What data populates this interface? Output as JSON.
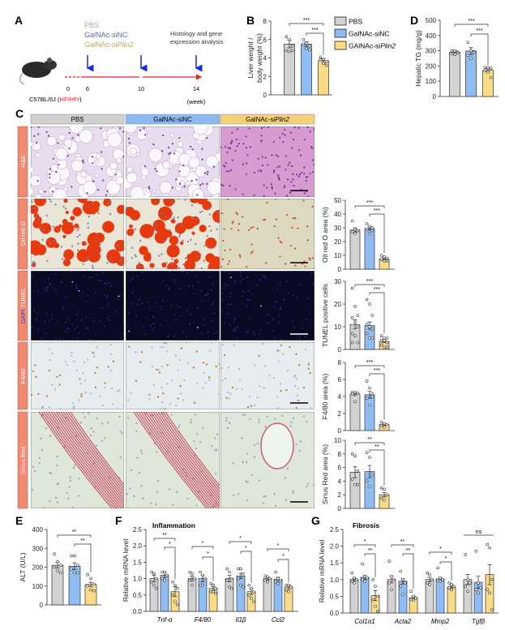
{
  "colors": {
    "pbs": "#d3d3d3",
    "sinc": "#8fbcf3",
    "siplin2": "#fbdc84",
    "red": "#ee2222",
    "arrow": "#1a2be8",
    "strip": "#f08a70"
  },
  "panels": {
    "A": "A",
    "B": "B",
    "C": "C",
    "D": "D",
    "E": "E",
    "F": "F",
    "G": "G"
  },
  "panel_a": {
    "groups": [
      "PBS",
      "GalNAc-siNC",
      "GalNAc-si",
      "Plin2"
    ],
    "endpoint_line1": "Histology and gene",
    "endpoint_line2": "expression analysis",
    "weeks": [
      "0",
      "6",
      "10",
      "14"
    ],
    "week_unit": "(week)",
    "strain": "C57BL/6J (",
    "diet": "HF/HFr",
    "strain_close": ")"
  },
  "legend": [
    "PBS",
    "GalNAc-siNC",
    "GAlNAc-si",
    "Plin2"
  ],
  "histology": {
    "columns": [
      "PBS",
      "GalNAc-siNC",
      "GalNAc-si",
      "Plin2"
    ],
    "rows": [
      "H&E",
      "Oil red O",
      "DAPI",
      "TUNEL",
      "F4/80",
      "Sirius Red"
    ]
  },
  "chart_data": [
    {
      "id": "B",
      "type": "bar",
      "ylabel": [
        "Liver weight /",
        "body weight (%)"
      ],
      "ylim": [
        0,
        8
      ],
      "yticks": [
        0,
        2,
        4,
        6,
        8
      ],
      "groups": [
        {
          "label": "",
          "values": [
            5.5,
            5.5,
            3.7
          ],
          "errors": [
            0.4,
            0.25,
            0.2
          ],
          "points": [
            [
              6.3,
              6.0,
              5.3,
              4.8,
              4.7,
              4.8
            ],
            [
              6.0,
              5.6,
              5.3,
              5.5,
              5.0,
              4.9
            ],
            [
              4.1,
              3.9,
              3.6,
              3.8,
              3.4,
              3.2
            ]
          ]
        }
      ],
      "sig": [
        {
          "a": 0,
          "b": 2,
          "label": "***"
        },
        {
          "a": 1,
          "b": 2,
          "label": "***"
        }
      ]
    },
    {
      "id": "D",
      "type": "bar",
      "ylabel": [
        "Hepatic TG (mg/g)"
      ],
      "ylim": [
        0,
        500
      ],
      "yticks": [
        0,
        100,
        200,
        300,
        400,
        500
      ],
      "groups": [
        {
          "label": "",
          "values": [
            290,
            298,
            172
          ],
          "errors": [
            12,
            22,
            10
          ],
          "points": [
            [
              300,
              300,
              290,
              280,
              275,
              285
            ],
            [
              355,
              300,
              295,
              270,
              250,
              290
            ],
            [
              190,
              190,
              185,
              170,
              160,
              125
            ]
          ]
        }
      ],
      "sig": [
        {
          "a": 0,
          "b": 2,
          "label": "***"
        },
        {
          "a": 1,
          "b": 2,
          "label": "***"
        }
      ]
    },
    {
      "id": "OilRedO",
      "type": "bar",
      "ylabel": [
        "Oil red O area (%)"
      ],
      "ylim": [
        0,
        50
      ],
      "yticks": [
        0,
        10,
        20,
        30,
        40,
        50
      ],
      "groups": [
        {
          "label": "",
          "values": [
            28.5,
            29.5,
            7.5
          ],
          "errors": [
            1.5,
            1.2,
            0.8
          ],
          "points": [
            [
              35,
              29,
              28,
              27,
              26,
              28
            ],
            [
              33,
              31,
              30,
              29,
              26,
              28
            ],
            [
              10,
              9,
              8,
              7,
              6,
              6
            ]
          ]
        }
      ],
      "sig": [
        {
          "a": 0,
          "b": 2,
          "label": "***"
        },
        {
          "a": 1,
          "b": 2,
          "label": "***"
        }
      ]
    },
    {
      "id": "TUNEL",
      "type": "bar",
      "ylabel": [
        "TUNEL positive cells"
      ],
      "ylim": [
        0,
        30
      ],
      "yticks": [
        0,
        10,
        20,
        30
      ],
      "groups": [
        {
          "label": "",
          "values": [
            11,
            10.5,
            3.5
          ],
          "errors": [
            2,
            1.6,
            0.5
          ],
          "points": [
            [
              27,
              19,
              15,
              14,
              12,
              10,
              7,
              6,
              3,
              3
            ],
            [
              22,
              20,
              15,
              11,
              10,
              9,
              7,
              5,
              5
            ],
            [
              6,
              5,
              5,
              4,
              4,
              3,
              2,
              1,
              1,
              2
            ]
          ]
        }
      ],
      "sig": [
        {
          "a": 0,
          "b": 2,
          "label": "***"
        },
        {
          "a": 1,
          "b": 2,
          "label": "***"
        }
      ]
    },
    {
      "id": "F480",
      "type": "bar",
      "ylabel": [
        "F4/80 area (%)"
      ],
      "ylim": [
        0,
        8
      ],
      "yticks": [
        0,
        2,
        4,
        6,
        8
      ],
      "groups": [
        {
          "label": "",
          "values": [
            4.3,
            4.2,
            0.7
          ],
          "errors": [
            0.2,
            0.4,
            0.1
          ],
          "points": [
            [
              4.5,
              4.5,
              4.4,
              4.3,
              3.4
            ],
            [
              5.8,
              5.0,
              4.3,
              3.8,
              3.0,
              4.0
            ],
            [
              1.0,
              0.8,
              0.7,
              0.6,
              0.4
            ]
          ]
        }
      ],
      "sig": [
        {
          "a": 0,
          "b": 2,
          "label": "***"
        },
        {
          "a": 1,
          "b": 2,
          "label": "***"
        }
      ]
    },
    {
      "id": "SiriusRed",
      "type": "bar",
      "ylabel": [
        "Sirius Red area (%)"
      ],
      "ylim": [
        0,
        10
      ],
      "yticks": [
        0,
        2,
        4,
        6,
        8,
        10
      ],
      "groups": [
        {
          "label": "",
          "values": [
            5.3,
            5.4,
            2.0
          ],
          "errors": [
            0.8,
            0.9,
            0.3
          ],
          "points": [
            [
              8.0,
              7.7,
              5.5,
              4.3,
              3.5,
              3.5
            ],
            [
              8.2,
              7.5,
              5.0,
              4.0,
              3.2
            ],
            [
              3.0,
              2.8,
              2.0,
              1.5,
              1.2
            ]
          ]
        }
      ],
      "sig": [
        {
          "a": 0,
          "b": 2,
          "label": "**"
        },
        {
          "a": 1,
          "b": 2,
          "label": "**"
        }
      ]
    },
    {
      "id": "E",
      "type": "bar",
      "ylabel": [
        "ALT (U/L)"
      ],
      "ylim": [
        0,
        400
      ],
      "yticks": [
        0,
        100,
        200,
        300,
        400
      ],
      "groups": [
        {
          "label": "",
          "values": [
            210,
            205,
            108
          ],
          "errors": [
            15,
            18,
            12
          ],
          "points": [
            [
              270,
              230,
              210,
              200,
              180,
              170
            ],
            [
              260,
              260,
              210,
              190,
              170,
              170
            ],
            [
              160,
              140,
              110,
              100,
              80,
              75
            ]
          ]
        }
      ],
      "sig": [
        {
          "a": 0,
          "b": 2,
          "label": "**"
        },
        {
          "a": 1,
          "b": 2,
          "label": "**"
        }
      ]
    },
    {
      "id": "F",
      "type": "bar",
      "title": "Inflammation",
      "ylabel": [
        "Relative mRNA level"
      ],
      "ylim": [
        0,
        2.5
      ],
      "yticks": [
        "0.0",
        "0.5",
        "1.0",
        "1.5",
        "2.0",
        "2.5"
      ],
      "groups": [
        {
          "label": "Tnf-α",
          "values": [
            1.0,
            1.1,
            0.6
          ],
          "errors": [
            0.1,
            0.08,
            0.15
          ],
          "points": [
            [
              1.2,
              1.15,
              1.0,
              0.9,
              0.8,
              0.7
            ],
            [
              1.2,
              1.2,
              1.1,
              1.0,
              0.95
            ],
            [
              0.9,
              0.8,
              0.7,
              0.5,
              0.3,
              0.2
            ]
          ],
          "sig": [
            {
              "a": 0,
              "b": 2,
              "label": "**"
            },
            {
              "a": 1,
              "b": 2,
              "label": "*"
            }
          ]
        },
        {
          "label": "F4/80",
          "values": [
            1.0,
            1.0,
            0.7
          ],
          "errors": [
            0.08,
            0.1,
            0.06
          ],
          "points": [
            [
              1.2,
              1.15,
              1.0,
              0.95,
              0.8
            ],
            [
              1.2,
              1.1,
              1.0,
              0.8,
              0.8
            ],
            [
              0.85,
              0.8,
              0.7,
              0.6,
              0.6,
              0.55
            ]
          ],
          "sig": [
            {
              "a": 0,
              "b": 2,
              "label": "*"
            },
            {
              "a": 1,
              "b": 2,
              "label": "*"
            }
          ]
        },
        {
          "label": "Il1β",
          "values": [
            1.0,
            1.08,
            0.6
          ],
          "errors": [
            0.1,
            0.08,
            0.08
          ],
          "points": [
            [
              1.3,
              1.2,
              1.0,
              0.95,
              0.75,
              0.7
            ],
            [
              1.3,
              1.3,
              1.15,
              1.0,
              0.8,
              0.75
            ],
            [
              0.8,
              0.7,
              0.6,
              0.5,
              0.4,
              0.3
            ]
          ],
          "sig": [
            {
              "a": 0,
              "b": 2,
              "label": "*"
            },
            {
              "a": 1,
              "b": 2,
              "label": "*"
            }
          ]
        },
        {
          "label": "Ccl2",
          "values": [
            1.0,
            0.98,
            0.74
          ],
          "errors": [
            0.04,
            0.06,
            0.07
          ],
          "points": [
            [
              1.08,
              1.05,
              1.0,
              0.95,
              0.9
            ],
            [
              1.2,
              1.0,
              0.95,
              0.9,
              0.85
            ],
            [
              0.8,
              0.8,
              0.75,
              0.65,
              0.6
            ]
          ],
          "sig": [
            {
              "a": 0,
              "b": 2,
              "label": "*"
            },
            {
              "a": 1,
              "b": 2,
              "label": "*"
            }
          ]
        }
      ]
    },
    {
      "id": "G",
      "type": "bar",
      "title": "Fibrosis",
      "ylabel": [
        "Relative mRNA level"
      ],
      "ylim": [
        0,
        2.5
      ],
      "yticks": [
        "0.0",
        "0.5",
        "1.0",
        "1.5",
        "2.0",
        "2.5"
      ],
      "groups": [
        {
          "label": "Col1α1",
          "values": [
            1.0,
            1.07,
            0.52
          ],
          "errors": [
            0.04,
            0.06,
            0.15
          ],
          "points": [
            [
              1.2,
              1.05,
              1.0,
              0.95,
              0.9
            ],
            [
              1.47,
              1.1,
              1.05,
              1.0,
              0.95
            ],
            [
              1.0,
              0.8,
              0.5,
              0.4,
              0.2,
              0.05
            ]
          ],
          "sig": [
            {
              "a": 0,
              "b": 2,
              "label": "*"
            },
            {
              "a": 1,
              "b": 2,
              "label": "**"
            }
          ]
        },
        {
          "label": "Acta2",
          "values": [
            1.0,
            0.95,
            0.46
          ],
          "errors": [
            0.1,
            0.08,
            0.04
          ],
          "points": [
            [
              1.55,
              1.1,
              1.0,
              0.9,
              0.7
            ],
            [
              1.25,
              1.0,
              0.9,
              0.8,
              0.55
            ],
            [
              0.65,
              0.5,
              0.45,
              0.4,
              0.38
            ]
          ],
          "sig": [
            {
              "a": 0,
              "b": 2,
              "label": "**"
            },
            {
              "a": 1,
              "b": 2,
              "label": "**"
            }
          ]
        },
        {
          "label": "Mmp2",
          "values": [
            1.0,
            1.02,
            0.78
          ],
          "errors": [
            0.07,
            0.05,
            0.04
          ],
          "points": [
            [
              1.2,
              1.15,
              1.0,
              0.9,
              0.85
            ],
            [
              1.35,
              1.05,
              1.0,
              0.98,
              0.95
            ],
            [
              0.9,
              0.85,
              0.8,
              0.75,
              0.7
            ]
          ],
          "sig": [
            {
              "a": 0,
              "b": 2,
              "label": "*"
            },
            {
              "a": 1,
              "b": 2,
              "label": "*"
            }
          ]
        },
        {
          "label": "Tgfβ",
          "values": [
            1.0,
            0.92,
            1.15
          ],
          "errors": [
            0.15,
            0.18,
            0.3
          ],
          "points": [
            [
              1.75,
              1.0,
              0.9,
              0.8,
              0.65
            ],
            [
              1.85,
              0.9,
              0.75,
              0.7,
              0.6
            ],
            [
              2.05,
              1.95,
              1.0,
              0.7,
              0.6,
              0.1
            ]
          ],
          "sig": [
            {
              "a": 0,
              "b": 2,
              "label": "ns",
              "grey": true
            }
          ]
        }
      ]
    }
  ]
}
